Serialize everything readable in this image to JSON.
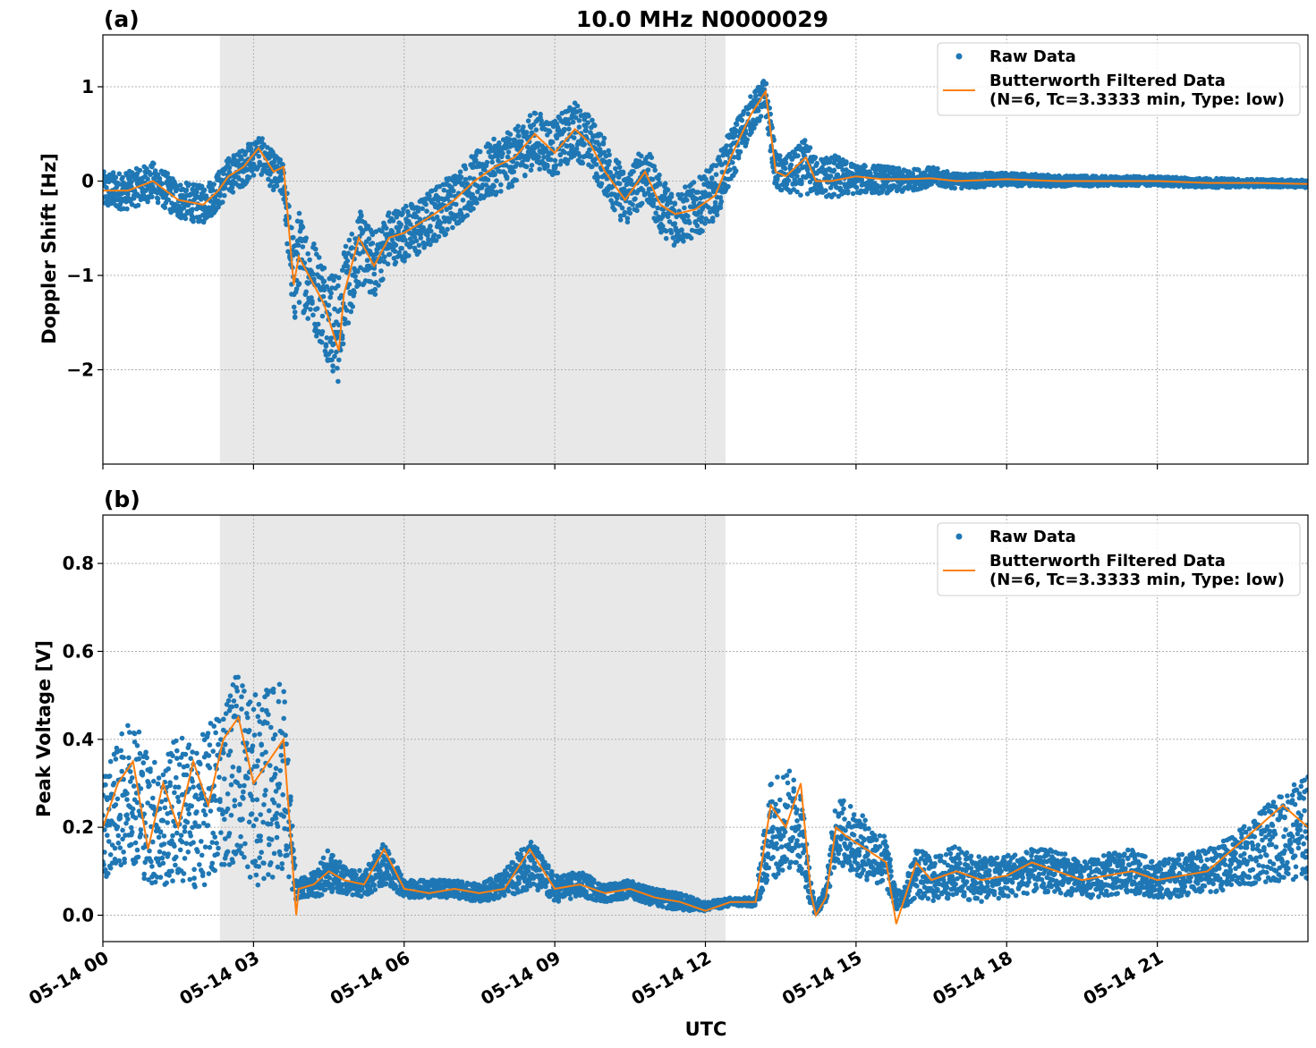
{
  "figure": {
    "title": "10.0 MHz N0000029",
    "xlabel": "UTC"
  },
  "legend": {
    "raw": "Raw Data",
    "filtered_line1": "Butterworth Filtered Data",
    "filtered_line2": "(N=6, Tc=3.3333 min, Type: low)"
  },
  "colors": {
    "raw": "#1f77b4",
    "filtered": "#ff7f0e",
    "shade": "#e8e8e8",
    "grid": "#b0b0b0"
  },
  "chart_data": [
    {
      "type": "scatter",
      "panel_label": "(a)",
      "title": "10.0 MHz N0000029",
      "ylabel": "Doppler Shift [Hz]",
      "xlim": [
        0,
        24
      ],
      "ylim": [
        -3.0,
        1.55
      ],
      "yticks": [
        -2,
        -1,
        0,
        1
      ],
      "ytick_labels": [
        "−2",
        "−1",
        "0",
        "1"
      ],
      "shaded_x": [
        2.33,
        12.4
      ],
      "grid": true,
      "legend": "upper right",
      "series": [
        {
          "name": "Raw Data",
          "kind": "points",
          "x": [
            0,
            0.5,
            1,
            1.5,
            2,
            2.3,
            2.5,
            2.8,
            3.1,
            3.4,
            3.6,
            3.8,
            3.9,
            4.1,
            4.4,
            4.7,
            4.8,
            5.1,
            5.4,
            5.7,
            6,
            6.3,
            6.6,
            7,
            7.4,
            7.8,
            8.2,
            8.6,
            9,
            9.4,
            9.7,
            10,
            10.4,
            10.8,
            11.1,
            11.4,
            11.8,
            12.2,
            12.5,
            12.9,
            13.2,
            13.4,
            13.6,
            14,
            14.2,
            14.3,
            14.5,
            15,
            15.5,
            16,
            16.5,
            17,
            18,
            19,
            20,
            21,
            22,
            23,
            24
          ],
          "y": [
            -0.1,
            -0.1,
            0,
            -0.2,
            -0.25,
            -0.1,
            0.05,
            0.15,
            0.3,
            0.1,
            0.0,
            -1.1,
            -0.8,
            -1.0,
            -1.3,
            -1.6,
            -1.2,
            -0.7,
            -0.9,
            -0.6,
            -0.55,
            -0.5,
            -0.35,
            -0.2,
            0.0,
            0.15,
            0.25,
            0.45,
            0.35,
            0.55,
            0.4,
            0.15,
            -0.2,
            0.1,
            -0.25,
            -0.4,
            -0.3,
            -0.1,
            0.25,
            0.7,
            0.9,
            0.1,
            0.05,
            0.15,
            0.05,
            0.05,
            0.05,
            0.02,
            0.02,
            0.0,
            0.05,
            0.0,
            0.02,
            0.0,
            0.0,
            0.0,
            -0.02,
            -0.02,
            -0.03
          ],
          "spread": [
            0.2,
            0.2,
            0.2,
            0.2,
            0.2,
            0.2,
            0.2,
            0.2,
            0.2,
            0.2,
            0.2,
            0.5,
            0.5,
            0.5,
            0.5,
            0.6,
            0.5,
            0.4,
            0.35,
            0.3,
            0.3,
            0.3,
            0.3,
            0.3,
            0.3,
            0.3,
            0.3,
            0.3,
            0.3,
            0.3,
            0.3,
            0.3,
            0.3,
            0.3,
            0.3,
            0.3,
            0.3,
            0.3,
            0.3,
            0.2,
            0.2,
            0.2,
            0.2,
            0.3,
            0.2,
            0.2,
            0.25,
            0.15,
            0.15,
            0.12,
            0.1,
            0.08,
            0.07,
            0.06,
            0.05,
            0.05,
            0.05,
            0.04,
            0.04
          ]
        },
        {
          "name": "Butterworth Filtered Data",
          "kind": "line",
          "x": [
            0,
            0.5,
            1,
            1.5,
            2,
            2.3,
            2.5,
            2.8,
            3.1,
            3.4,
            3.6,
            3.8,
            3.9,
            4.1,
            4.4,
            4.7,
            4.8,
            5.1,
            5.4,
            5.7,
            6,
            6.3,
            6.6,
            7,
            7.4,
            7.8,
            8.2,
            8.6,
            9,
            9.4,
            9.7,
            10,
            10.4,
            10.8,
            11.1,
            11.4,
            11.8,
            12.2,
            12.5,
            12.9,
            13.2,
            13.4,
            13.6,
            14,
            14.2,
            14.3,
            14.5,
            15,
            15.5,
            16,
            16.5,
            17,
            18,
            19,
            20,
            21,
            22,
            23,
            24
          ],
          "y": [
            -0.1,
            -0.1,
            0,
            -0.2,
            -0.25,
            -0.1,
            0.05,
            0.15,
            0.35,
            0.1,
            0.15,
            -1.1,
            -0.8,
            -1.0,
            -1.3,
            -1.8,
            -1.2,
            -0.6,
            -0.9,
            -0.6,
            -0.55,
            -0.45,
            -0.35,
            -0.2,
            0.0,
            0.15,
            0.25,
            0.5,
            0.3,
            0.55,
            0.4,
            0.1,
            -0.2,
            0.1,
            -0.25,
            -0.35,
            -0.3,
            -0.15,
            0.25,
            0.7,
            0.95,
            0.1,
            0.05,
            0.25,
            0.0,
            0.0,
            0.0,
            0.05,
            0.02,
            0.02,
            0.03,
            0.0,
            0.02,
            0.0,
            0.0,
            0.0,
            -0.02,
            -0.02,
            -0.03
          ]
        }
      ]
    },
    {
      "type": "scatter",
      "panel_label": "(b)",
      "ylabel": "Peak Voltage [V]",
      "xlabel": "UTC",
      "xlim": [
        0,
        24
      ],
      "ylim": [
        -0.06,
        0.91
      ],
      "yticks": [
        0.0,
        0.2,
        0.4,
        0.6,
        0.8
      ],
      "ytick_labels": [
        "0.0",
        "0.2",
        "0.4",
        "0.6",
        "0.8"
      ],
      "xticks": [
        0,
        3,
        6,
        9,
        12,
        15,
        18,
        21
      ],
      "xtick_labels": [
        "05-14 00",
        "05-14 03",
        "05-14 06",
        "05-14 09",
        "05-14 12",
        "05-14 15",
        "05-14 18",
        "05-14 21"
      ],
      "shaded_x": [
        2.33,
        12.4
      ],
      "grid": true,
      "legend": "upper right",
      "series": [
        {
          "name": "Raw Data",
          "kind": "points",
          "x": [
            0,
            0.3,
            0.6,
            0.9,
            1.2,
            1.5,
            1.8,
            2.1,
            2.4,
            2.7,
            3.0,
            3.3,
            3.6,
            3.85,
            3.9,
            4.2,
            4.5,
            4.8,
            5.2,
            5.6,
            6,
            6.5,
            7,
            7.5,
            8,
            8.5,
            9,
            9.5,
            10,
            10.5,
            11,
            11.5,
            12,
            12.5,
            13,
            13.3,
            13.6,
            13.9,
            14.1,
            14.2,
            14.4,
            14.6,
            14.8,
            15.2,
            15.6,
            15.8,
            16.0,
            16.2,
            16.5,
            17,
            17.5,
            18,
            18.5,
            19,
            19.5,
            20,
            20.5,
            21,
            21.5,
            22,
            22.5,
            23,
            23.5,
            24
          ],
          "y": [
            0.2,
            0.25,
            0.3,
            0.22,
            0.2,
            0.25,
            0.22,
            0.25,
            0.3,
            0.35,
            0.28,
            0.3,
            0.32,
            0.05,
            0.06,
            0.07,
            0.1,
            0.08,
            0.07,
            0.12,
            0.06,
            0.06,
            0.06,
            0.05,
            0.07,
            0.12,
            0.06,
            0.07,
            0.05,
            0.06,
            0.04,
            0.03,
            0.02,
            0.03,
            0.03,
            0.2,
            0.22,
            0.2,
            0.05,
            0.01,
            0.05,
            0.2,
            0.18,
            0.15,
            0.12,
            0.03,
            0.05,
            0.1,
            0.08,
            0.1,
            0.08,
            0.09,
            0.1,
            0.1,
            0.08,
            0.09,
            0.1,
            0.08,
            0.09,
            0.1,
            0.12,
            0.15,
            0.18,
            0.2
          ],
          "spread": [
            0.12,
            0.14,
            0.18,
            0.15,
            0.14,
            0.18,
            0.16,
            0.18,
            0.2,
            0.22,
            0.22,
            0.22,
            0.22,
            0.02,
            0.02,
            0.03,
            0.05,
            0.03,
            0.03,
            0.05,
            0.02,
            0.02,
            0.02,
            0.02,
            0.03,
            0.06,
            0.03,
            0.03,
            0.02,
            0.02,
            0.02,
            0.02,
            0.01,
            0.01,
            0.01,
            0.12,
            0.12,
            0.1,
            0.03,
            0.01,
            0.02,
            0.08,
            0.08,
            0.07,
            0.06,
            0.02,
            0.03,
            0.06,
            0.05,
            0.06,
            0.05,
            0.05,
            0.05,
            0.05,
            0.04,
            0.05,
            0.05,
            0.04,
            0.05,
            0.05,
            0.06,
            0.08,
            0.1,
            0.12
          ]
        },
        {
          "name": "Butterworth Filtered Data",
          "kind": "line",
          "x": [
            0,
            0.3,
            0.6,
            0.9,
            1.2,
            1.5,
            1.8,
            2.1,
            2.4,
            2.7,
            3.0,
            3.3,
            3.6,
            3.85,
            3.9,
            4.2,
            4.5,
            4.8,
            5.2,
            5.6,
            6,
            6.5,
            7,
            7.5,
            8,
            8.5,
            9,
            9.5,
            10,
            10.5,
            11,
            11.5,
            12,
            12.5,
            13,
            13.3,
            13.6,
            13.9,
            14.1,
            14.2,
            14.4,
            14.6,
            14.8,
            15.2,
            15.6,
            15.8,
            16.0,
            16.2,
            16.5,
            17,
            17.5,
            18,
            18.5,
            19,
            19.5,
            20,
            20.5,
            21,
            21.5,
            22,
            22.5,
            23,
            23.5,
            24
          ],
          "y": [
            0.2,
            0.3,
            0.35,
            0.15,
            0.3,
            0.2,
            0.35,
            0.25,
            0.4,
            0.45,
            0.3,
            0.35,
            0.4,
            0.0,
            0.06,
            0.07,
            0.1,
            0.08,
            0.07,
            0.15,
            0.06,
            0.05,
            0.06,
            0.05,
            0.06,
            0.15,
            0.06,
            0.07,
            0.05,
            0.06,
            0.04,
            0.03,
            0.01,
            0.03,
            0.03,
            0.25,
            0.2,
            0.3,
            0.05,
            0.0,
            0.04,
            0.2,
            0.18,
            0.15,
            0.12,
            -0.02,
            0.05,
            0.12,
            0.08,
            0.1,
            0.08,
            0.09,
            0.12,
            0.1,
            0.08,
            0.09,
            0.1,
            0.08,
            0.09,
            0.1,
            0.15,
            0.2,
            0.25,
            0.2
          ]
        }
      ]
    }
  ]
}
